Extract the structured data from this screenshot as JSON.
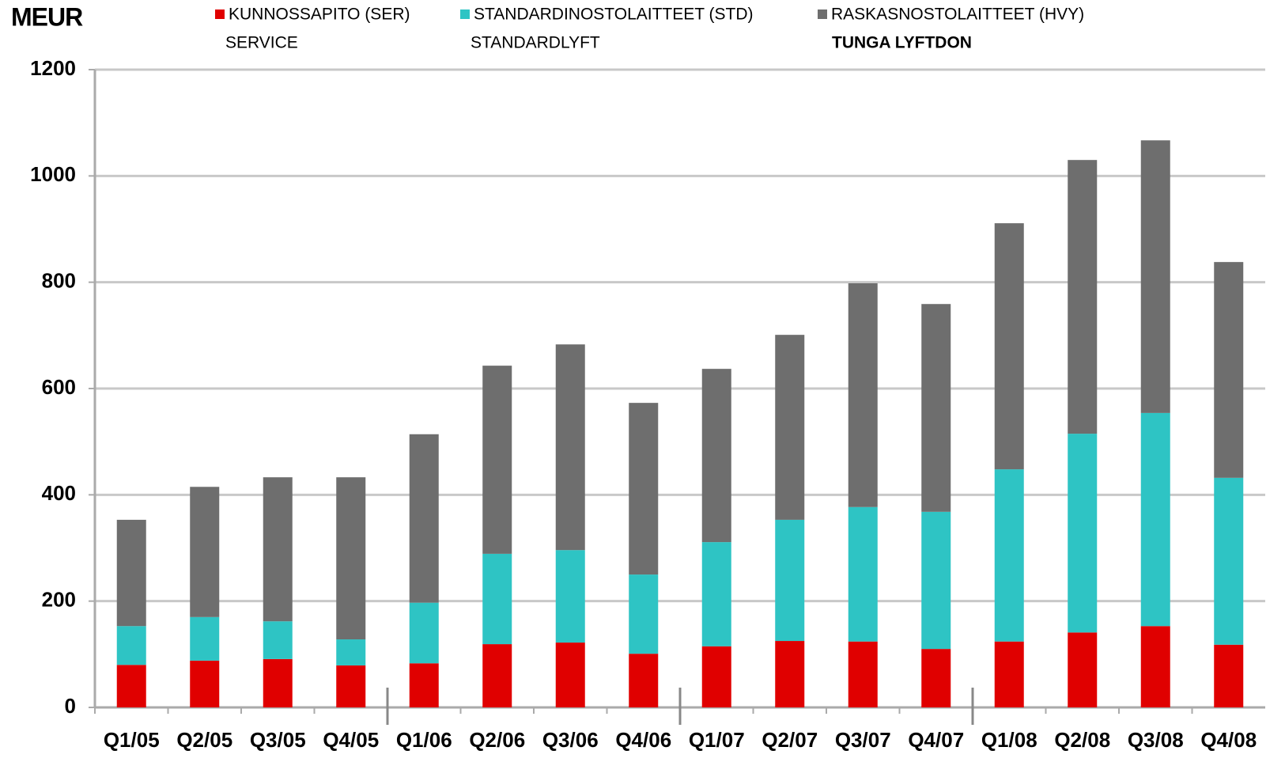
{
  "chart_data": {
    "type": "stacked_bar",
    "title": "MEUR",
    "categories": [
      "Q1/05",
      "Q2/05",
      "Q3/05",
      "Q4/05",
      "Q1/06",
      "Q2/06",
      "Q3/06",
      "Q4/06",
      "Q1/07",
      "Q2/07",
      "Q3/07",
      "Q4/07",
      "Q1/08",
      "Q2/08",
      "Q3/08",
      "Q4/08"
    ],
    "series": [
      {
        "name": "KUNNOSSAPITO (SER)",
        "subtitle": "SERVICE",
        "color": "#e00000",
        "values": [
          80,
          88,
          91,
          79,
          83,
          119,
          122,
          101,
          115,
          125,
          124,
          110,
          124,
          141,
          153,
          118
        ]
      },
      {
        "name": "STANDARDINOSTOLAITTEET (STD)",
        "subtitle": "STANDARDLYFT",
        "color": "#2ec4c4",
        "values": [
          73,
          82,
          71,
          49,
          114,
          170,
          174,
          149,
          196,
          228,
          253,
          258,
          324,
          374,
          401,
          314
        ]
      },
      {
        "name": "RASKASNOSTOLAITTEET (HVY)",
        "subtitle": "TUNGA LYFTDON",
        "color": "#6e6e6e",
        "values": [
          200,
          245,
          271,
          305,
          317,
          354,
          387,
          323,
          326,
          348,
          421,
          391,
          463,
          515,
          513,
          406
        ]
      }
    ],
    "ylim": [
      0,
      1200
    ],
    "yticks": [
      0,
      200,
      400,
      600,
      800,
      1000,
      1200
    ],
    "grid": true
  }
}
